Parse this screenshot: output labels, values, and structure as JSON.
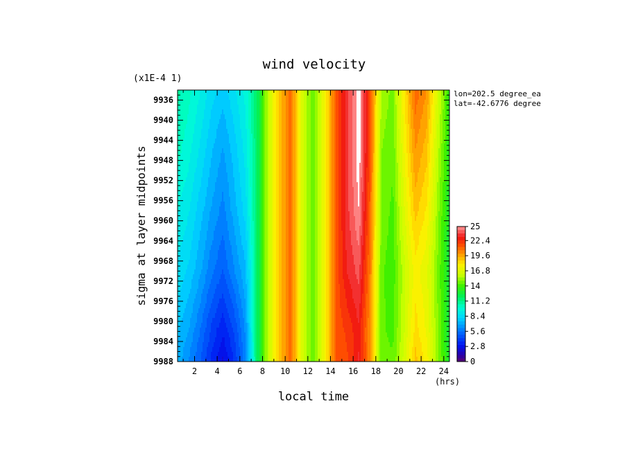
{
  "chart_data": {
    "type": "heatmap",
    "title": "wind velocity",
    "y_scale_note": "(x1E-4 1)",
    "xlabel": "local time",
    "x_unit": "(hrs)",
    "ylabel": "sigma at layer midpoints",
    "annotations": [
      "lon=202.5 degree_ea",
      "lat=-42.6776 degree"
    ],
    "x_range": [
      0.5,
      24.5
    ],
    "x_ticks": [
      2,
      4,
      6,
      8,
      10,
      12,
      14,
      16,
      18,
      20,
      22,
      24
    ],
    "x_tick_labels": [
      "2",
      "4",
      "6",
      "8",
      "10",
      "12",
      "14",
      "16",
      "18",
      "20",
      "22",
      "24"
    ],
    "y_range": [
      9934,
      9988
    ],
    "y_reversed": true,
    "y_ticks": [
      9936,
      9940,
      9944,
      9948,
      9952,
      9956,
      9960,
      9964,
      9968,
      9972,
      9976,
      9980,
      9984,
      9988
    ],
    "y_tick_labels": [
      "9936",
      "9940",
      "9944",
      "9948",
      "9952",
      "9956",
      "9960",
      "9964",
      "9968",
      "9972",
      "9976",
      "9980",
      "9984",
      "9988"
    ],
    "x": [
      0.5,
      1.5,
      2.5,
      3.5,
      4.5,
      5.5,
      6.5,
      7.5,
      8.5,
      9.5,
      10.5,
      11.5,
      12.5,
      13.5,
      14.5,
      15.5,
      16.5,
      17.5,
      18.5,
      19.5,
      20.5,
      21.5,
      22.5,
      23.5,
      24.5
    ],
    "y": [
      9934,
      9946,
      9958,
      9970,
      9982,
      9988
    ],
    "z": [
      [
        10.8,
        10.2,
        9.4,
        8.4,
        7.8,
        8.6,
        9.6,
        11.8,
        16.0,
        19.0,
        21.0,
        16.5,
        14.5,
        17.5,
        21.5,
        23.6,
        25.5,
        21.5,
        15.5,
        14.8,
        18.0,
        21.0,
        20.0,
        16.5,
        13.5
      ],
      [
        10.2,
        9.6,
        8.6,
        7.6,
        6.8,
        7.8,
        9.0,
        11.8,
        16.0,
        19.0,
        21.0,
        16.5,
        14.5,
        17.5,
        21.5,
        23.6,
        25.5,
        21.5,
        15.0,
        14.5,
        17.5,
        20.0,
        19.0,
        15.8,
        13.2
      ],
      [
        9.4,
        8.8,
        7.8,
        6.8,
        6.0,
        7.2,
        8.4,
        11.8,
        16.0,
        19.0,
        21.0,
        16.5,
        14.5,
        17.5,
        21.5,
        23.6,
        25.0,
        21.0,
        14.8,
        14.2,
        16.8,
        19.0,
        18.0,
        15.2,
        12.8
      ],
      [
        8.6,
        8.0,
        7.0,
        5.8,
        5.0,
        6.2,
        7.4,
        11.8,
        16.0,
        19.0,
        21.0,
        16.5,
        14.5,
        17.5,
        21.5,
        23.2,
        24.0,
        20.5,
        14.5,
        14.0,
        16.0,
        17.8,
        17.0,
        14.8,
        12.5
      ],
      [
        7.6,
        6.8,
        5.6,
        4.2,
        3.2,
        4.4,
        6.4,
        11.8,
        16.0,
        19.0,
        21.0,
        16.5,
        14.5,
        17.5,
        21.5,
        22.0,
        23.0,
        20.0,
        14.5,
        14.2,
        16.2,
        18.4,
        17.4,
        15.0,
        12.5
      ],
      [
        7.2,
        6.2,
        5.0,
        3.6,
        2.4,
        3.8,
        6.0,
        11.8,
        16.0,
        19.0,
        21.0,
        16.5,
        14.5,
        17.5,
        21.5,
        21.8,
        23.2,
        20.0,
        14.5,
        14.5,
        16.5,
        19.0,
        17.8,
        15.2,
        12.8
      ]
    ],
    "colorbar": {
      "min": 0,
      "max": 25,
      "levels": 40,
      "tick_values": [
        0,
        2.8,
        5.6,
        8.4,
        11.2,
        14,
        16.8,
        19.6,
        22.4,
        25
      ],
      "tick_labels": [
        "0",
        "2.8",
        "5.6",
        "8.4",
        "11.2",
        "14",
        "16.8",
        "19.6",
        "22.4",
        "25"
      ],
      "above_max_color": "#ffffff"
    }
  }
}
